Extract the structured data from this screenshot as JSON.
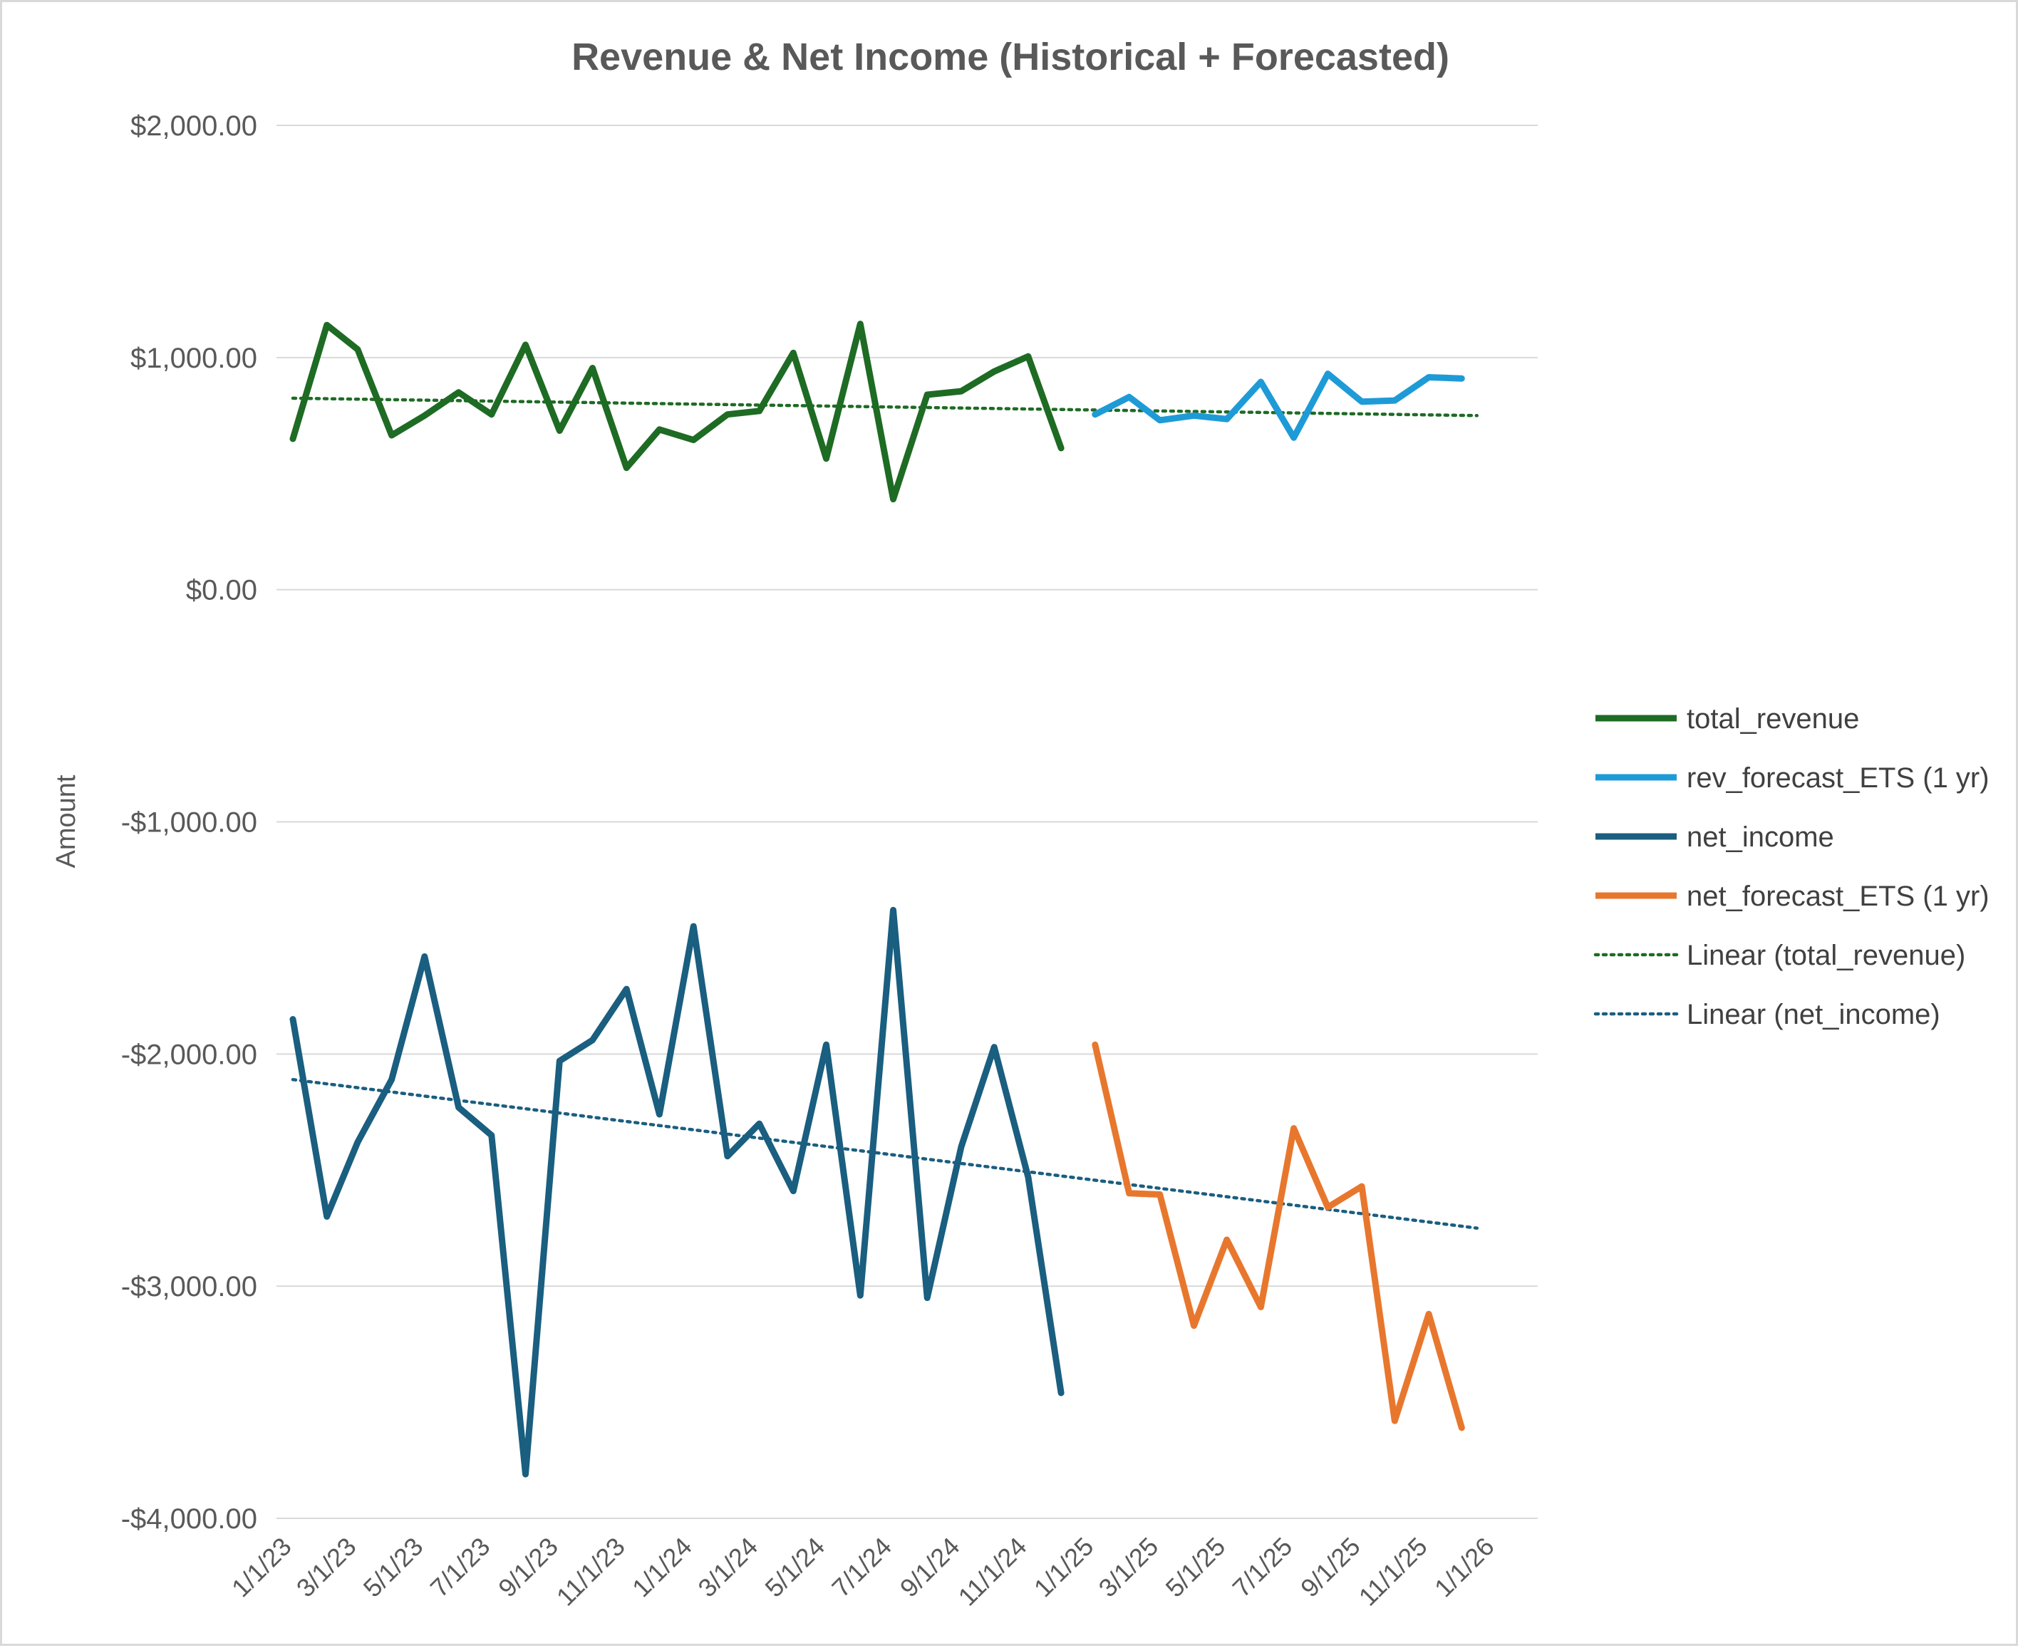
{
  "chart_data": {
    "type": "line",
    "title": "Revenue & Net Income  (Historical + Forecasted)",
    "ylabel": "Amount",
    "xlabel": "",
    "ylim": [
      -4000,
      2000
    ],
    "yticks": [
      2000,
      1000,
      0,
      -1000,
      -2000,
      -3000,
      -4000
    ],
    "ytick_labels": [
      "$2,000.00",
      "$1,000.00",
      "$0.00",
      "-$1,000.00",
      "-$2,000.00",
      "-$3,000.00",
      "-$4,000.00"
    ],
    "x_ticks": [
      "1/1/23",
      "3/1/23",
      "5/1/23",
      "7/1/23",
      "9/1/23",
      "11/1/23",
      "1/1/24",
      "3/1/24",
      "5/1/24",
      "7/1/24",
      "9/1/24",
      "11/1/24",
      "1/1/25",
      "3/1/25",
      "5/1/25",
      "7/1/25",
      "9/1/25",
      "11/1/25",
      "1/1/26"
    ],
    "grid": true,
    "legend_position": "right",
    "series": [
      {
        "name": "total_revenue",
        "color": "#1E6B24",
        "style": "solid",
        "x": [
          "2023-01-01",
          "2023-02-01",
          "2023-03-01",
          "2023-04-01",
          "2023-05-01",
          "2023-06-01",
          "2023-07-01",
          "2023-08-01",
          "2023-09-01",
          "2023-10-01",
          "2023-11-01",
          "2023-12-01",
          "2024-01-01",
          "2024-02-01",
          "2024-03-01",
          "2024-04-01",
          "2024-05-01",
          "2024-06-01",
          "2024-07-01",
          "2024-08-01",
          "2024-09-01",
          "2024-10-01",
          "2024-11-01",
          "2024-12-01"
        ],
        "values": [
          650,
          1140,
          1035,
          665,
          750,
          850,
          755,
          1055,
          685,
          955,
          525,
          690,
          645,
          755,
          770,
          1020,
          565,
          1145,
          390,
          840,
          855,
          940,
          1005,
          610
        ]
      },
      {
        "name": "rev_forecast_ETS (1 yr)",
        "color": "#1E9BD7",
        "style": "solid",
        "x": [
          "2025-01-01",
          "2025-02-01",
          "2025-03-01",
          "2025-04-01",
          "2025-05-01",
          "2025-06-01",
          "2025-07-01",
          "2025-08-01",
          "2025-09-01",
          "2025-10-01",
          "2025-11-01",
          "2025-12-01"
        ],
        "values": [
          755,
          830,
          730,
          750,
          735,
          895,
          655,
          930,
          810,
          815,
          915,
          910
        ]
      },
      {
        "name": "net_income",
        "color": "#1A5E80",
        "style": "solid",
        "x": [
          "2023-01-01",
          "2023-02-01",
          "2023-03-01",
          "2023-04-01",
          "2023-05-01",
          "2023-06-01",
          "2023-07-01",
          "2023-08-01",
          "2023-09-01",
          "2023-10-01",
          "2023-11-01",
          "2023-12-01",
          "2024-01-01",
          "2024-02-01",
          "2024-03-01",
          "2024-04-01",
          "2024-05-01",
          "2024-06-01",
          "2024-07-01",
          "2024-08-01",
          "2024-09-01",
          "2024-10-01",
          "2024-11-01",
          "2024-12-01"
        ],
        "values": [
          -1850,
          -2700,
          -2380,
          -2110,
          -1580,
          -2230,
          -2350,
          -3810,
          -2030,
          -1940,
          -1720,
          -2260,
          -1450,
          -2440,
          -2300,
          -2590,
          -1960,
          -3040,
          -1380,
          -3050,
          -2400,
          -1970,
          -2530,
          -3460
        ]
      },
      {
        "name": "net_forecast_ETS (1 yr)",
        "color": "#E8772E",
        "style": "solid",
        "x": [
          "2025-01-01",
          "2025-02-01",
          "2025-03-01",
          "2025-04-01",
          "2025-05-01",
          "2025-06-01",
          "2025-07-01",
          "2025-08-01",
          "2025-09-01",
          "2025-10-01",
          "2025-11-01",
          "2025-12-01"
        ],
        "values": [
          -1960,
          -2600,
          -2605,
          -3170,
          -2800,
          -3090,
          -2320,
          -2660,
          -2570,
          -3580,
          -3120,
          -3610
        ]
      },
      {
        "name": "Linear (total_revenue)",
        "color": "#1E6B24",
        "style": "dotted",
        "x": [
          "2023-01-01",
          "2025-12-15"
        ],
        "values": [
          825,
          750
        ]
      },
      {
        "name": "Linear (net_income)",
        "color": "#1A5E80",
        "style": "dotted",
        "x": [
          "2023-01-01",
          "2025-12-15"
        ],
        "values": [
          -2110,
          -2750
        ]
      }
    ]
  }
}
